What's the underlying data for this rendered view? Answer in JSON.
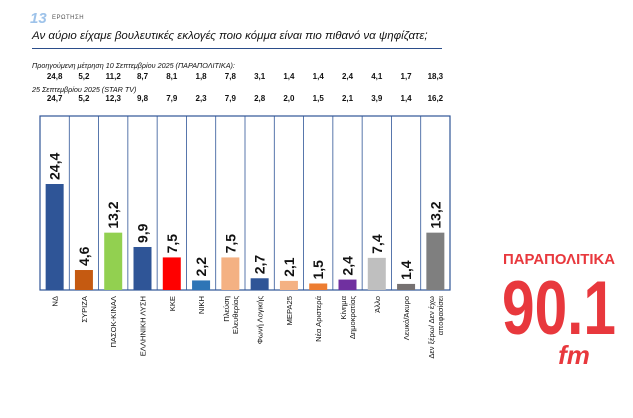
{
  "header": {
    "number": "13",
    "label": "ΕΡΩΤΗΣΗ",
    "title": "Αν αύριο είχαμε βουλευτικές εκλογές ποιο κόμμα είναι πιο πιθανό να ψηφίζατε;"
  },
  "comparison": {
    "previous_label": "Προηγούμενη μέτρηση 10 Σεπτεμβρίου 2025 (ΠΑΡΑΠΟΛΙΤΙΚΑ):",
    "current_label": "25 Σεπτεμβρίου 2025 (STAR TV)"
  },
  "logo": {
    "brand_text": "ΠΑΡΑΠΟΛΙΤΙΚΑ",
    "frequency_text": "90.1",
    "suffix_text": "fm",
    "color": "#e8383d"
  },
  "chart_data": {
    "type": "bar",
    "categories": [
      "ΝΔ",
      "ΣΥΡΙΖΑ",
      "ΠΑΣΟΚ-ΚΙΝΑΛ",
      "ΕΛΛΗΝΙΚΗ ΛΥΣΗ",
      "ΚΚΕ",
      "ΝΙΚΗ",
      "Πλεύση Ελευθερίας",
      "Φωνή Λογικής",
      "ΜΕΡΑ25",
      "Νέα Αριστερά",
      "Κίνημα Δημοκρατίας",
      "Άλλο",
      "Λευκό/Άκυρο",
      "Δεν ξέρω/ Δεν έχω αποφασίσει"
    ],
    "category_lines": [
      [
        "ΝΔ"
      ],
      [
        "ΣΥΡΙΖΑ"
      ],
      [
        "ΠΑΣΟΚ-ΚΙΝΑΛ"
      ],
      [
        "ΕΛΛΗΝΙΚΗ ΛΥΣΗ"
      ],
      [
        "ΚΚΕ"
      ],
      [
        "ΝΙΚΗ"
      ],
      [
        "Πλεύση",
        "Ελευθερίας"
      ],
      [
        "Φωνή Λογικής"
      ],
      [
        "ΜΕΡΑ25"
      ],
      [
        "Νέα Αριστερά"
      ],
      [
        "Κίνημα",
        "Δημοκρατίας"
      ],
      [
        "Άλλο"
      ],
      [
        "Λευκό/Άκυρο"
      ],
      [
        "Δεν ξέρω/ Δεν έχω",
        "αποφασίσει"
      ]
    ],
    "values": [
      24.4,
      4.6,
      13.2,
      9.9,
      7.5,
      2.2,
      7.5,
      2.7,
      2.1,
      1.5,
      2.4,
      7.4,
      1.4,
      13.2
    ],
    "value_labels": [
      "24,4",
      "4,6",
      "13,2",
      "9,9",
      "7,5",
      "2,2",
      "7,5",
      "2,7",
      "2,1",
      "1,5",
      "2,4",
      "7,4",
      "1,4",
      "13,2"
    ],
    "previous_values": [
      "24,8",
      "5,2",
      "11,2",
      "8,7",
      "8,1",
      "1,8",
      "7,8",
      "3,1",
      "1,4",
      "1,4",
      "2,4",
      "4,1",
      "1,7",
      "18,3"
    ],
    "star_values": [
      "24,7",
      "5,2",
      "12,3",
      "9,8",
      "7,9",
      "2,3",
      "7,9",
      "2,8",
      "2,0",
      "1,5",
      "2,1",
      "3,9",
      "1,4",
      "16,2"
    ],
    "colors": [
      "#2f5597",
      "#c55a11",
      "#92d050",
      "#2f5597",
      "#ff0000",
      "#2e75b6",
      "#f4b183",
      "#2f5597",
      "#f4b183",
      "#ed7d31",
      "#7030a0",
      "#bfbfbf",
      "#767171",
      "#7f7f7f"
    ],
    "ylim": [
      0,
      30
    ],
    "grid": false,
    "legend": "none",
    "xlabel": "",
    "ylabel": ""
  }
}
